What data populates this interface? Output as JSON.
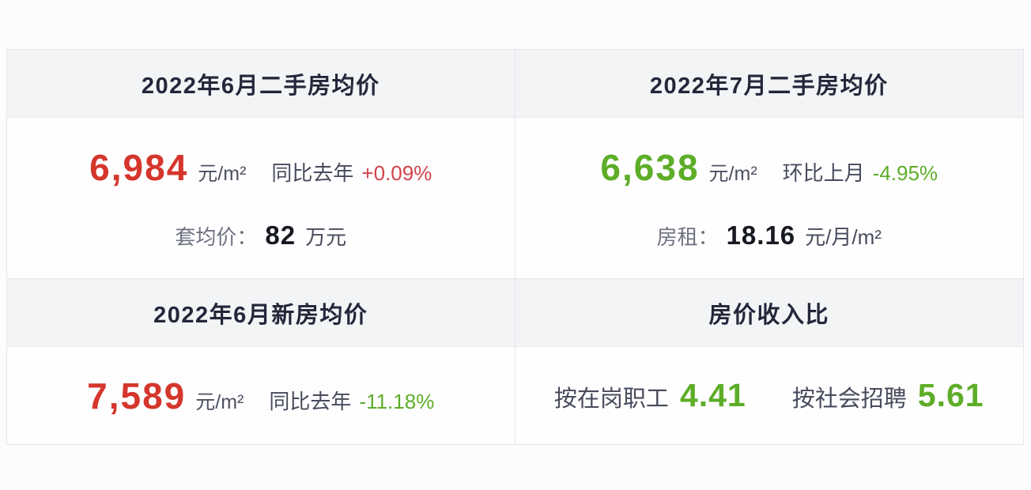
{
  "colors": {
    "page_bg": "#fcfcfd",
    "card_bg": "#fefeff",
    "header_bg": "#f3f4f6",
    "border": "#e4e6ea",
    "title_text": "#23273a",
    "label_gray": "#6e7280",
    "label_dark": "#474b5c",
    "number_dark": "#16191f",
    "red": "#d5362c",
    "red_pct": "#d2434b",
    "green": "#5ead28"
  },
  "cards": {
    "june_used": {
      "title": "2022年6月二手房均价",
      "price": "6,984",
      "price_unit": "元/m²",
      "compare_label": "同比去年",
      "compare_value": "+0.09%",
      "extra_label": "套均价：",
      "extra_value": "82",
      "extra_unit": "万元"
    },
    "july_used": {
      "title": "2022年7月二手房均价",
      "price": "6,638",
      "price_unit": "元/m²",
      "compare_label": "环比上月",
      "compare_value": "-4.95%",
      "extra_label": "房租：",
      "extra_value": "18.16",
      "extra_unit": "元/月/m²"
    },
    "june_new": {
      "title": "2022年6月新房均价",
      "price": "7,589",
      "price_unit": "元/m²",
      "compare_label": "同比去年",
      "compare_value": "-11.18%"
    },
    "price_income_ratio": {
      "title": "房价收入比",
      "ratio1_label": "按在岗职工",
      "ratio1_value": "4.41",
      "ratio2_label": "按社会招聘",
      "ratio2_value": "5.61"
    }
  }
}
